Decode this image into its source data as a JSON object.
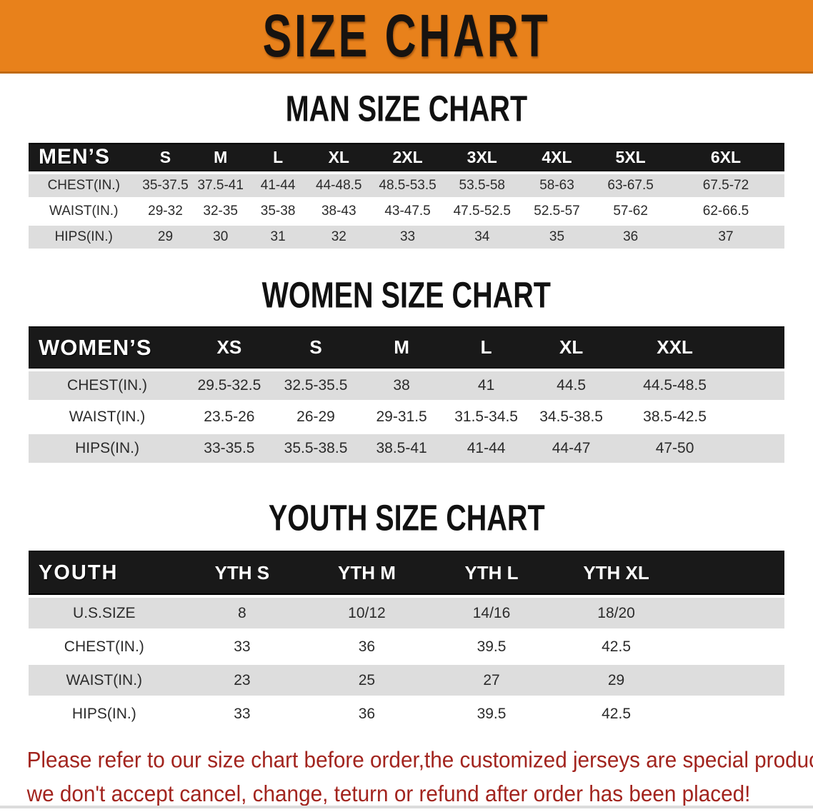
{
  "banner": {
    "title": "SIZE CHART",
    "bg_color": "#E8811B",
    "text_color": "#171310"
  },
  "sections": {
    "men": {
      "title": "MAN SIZE CHART",
      "table": {
        "header_label": "MEN’S",
        "columns": [
          "S",
          "M",
          "L",
          "XL",
          "2XL",
          "3XL",
          "4XL",
          "5XL",
          "6XL"
        ],
        "rows": [
          {
            "label": "CHEST(IN.)",
            "values": [
              "35-37.5",
              "37.5-41",
              "41-44",
              "44-48.5",
              "48.5-53.5",
              "53.5-58",
              "58-63",
              "63-67.5",
              "67.5-72"
            ]
          },
          {
            "label": "WAIST(IN.)",
            "values": [
              "29-32",
              "32-35",
              "35-38",
              "38-43",
              "43-47.5",
              "47.5-52.5",
              "52.5-57",
              "57-62",
              "62-66.5"
            ]
          },
          {
            "label": "HIPS(IN.)",
            "values": [
              "29",
              "30",
              "31",
              "32",
              "33",
              "34",
              "35",
              "36",
              "37"
            ]
          }
        ]
      }
    },
    "women": {
      "title": "WOMEN SIZE CHART",
      "table": {
        "header_label": "WOMEN’S",
        "columns": [
          "XS",
          "S",
          "M",
          "L",
          "XL",
          "XXL"
        ],
        "rows": [
          {
            "label": "CHEST(IN.)",
            "values": [
              "29.5-32.5",
              "32.5-35.5",
              "38",
              "41",
              "44.5",
              "44.5-48.5"
            ]
          },
          {
            "label": "WAIST(IN.)",
            "values": [
              "23.5-26",
              "26-29",
              "29-31.5",
              "31.5-34.5",
              "34.5-38.5",
              "38.5-42.5"
            ]
          },
          {
            "label": "HIPS(IN.)",
            "values": [
              "33-35.5",
              "35.5-38.5",
              "38.5-41",
              "41-44",
              "44-47",
              "47-50"
            ]
          }
        ]
      }
    },
    "youth": {
      "title": "YOUTH SIZE CHART",
      "table": {
        "header_label": "YOUTH",
        "columns": [
          "YTH S",
          "YTH M",
          "YTH L",
          "YTH XL"
        ],
        "rows": [
          {
            "label": "U.S.SIZE",
            "values": [
              "8",
              "10/12",
              "14/16",
              "18/20"
            ]
          },
          {
            "label": "CHEST(IN.)",
            "values": [
              "33",
              "36",
              "39.5",
              "42.5"
            ]
          },
          {
            "label": "WAIST(IN.)",
            "values": [
              "23",
              "25",
              "27",
              "29"
            ]
          },
          {
            "label": "HIPS(IN.)",
            "values": [
              "33",
              "36",
              "39.5",
              "42.5"
            ]
          }
        ]
      }
    }
  },
  "disclaimer": {
    "line1": "Please refer to our size chart before order,the customized jerseys are special products,",
    "line2": "we don't accept cancel, change, teturn or refund after order has been placed!",
    "color": "#A2241E"
  },
  "colors": {
    "banner_orange": "#E8811B",
    "header_bar_black": "#191919",
    "row_gray": "#DDDDDD",
    "disclaimer_red": "#A2241E"
  }
}
